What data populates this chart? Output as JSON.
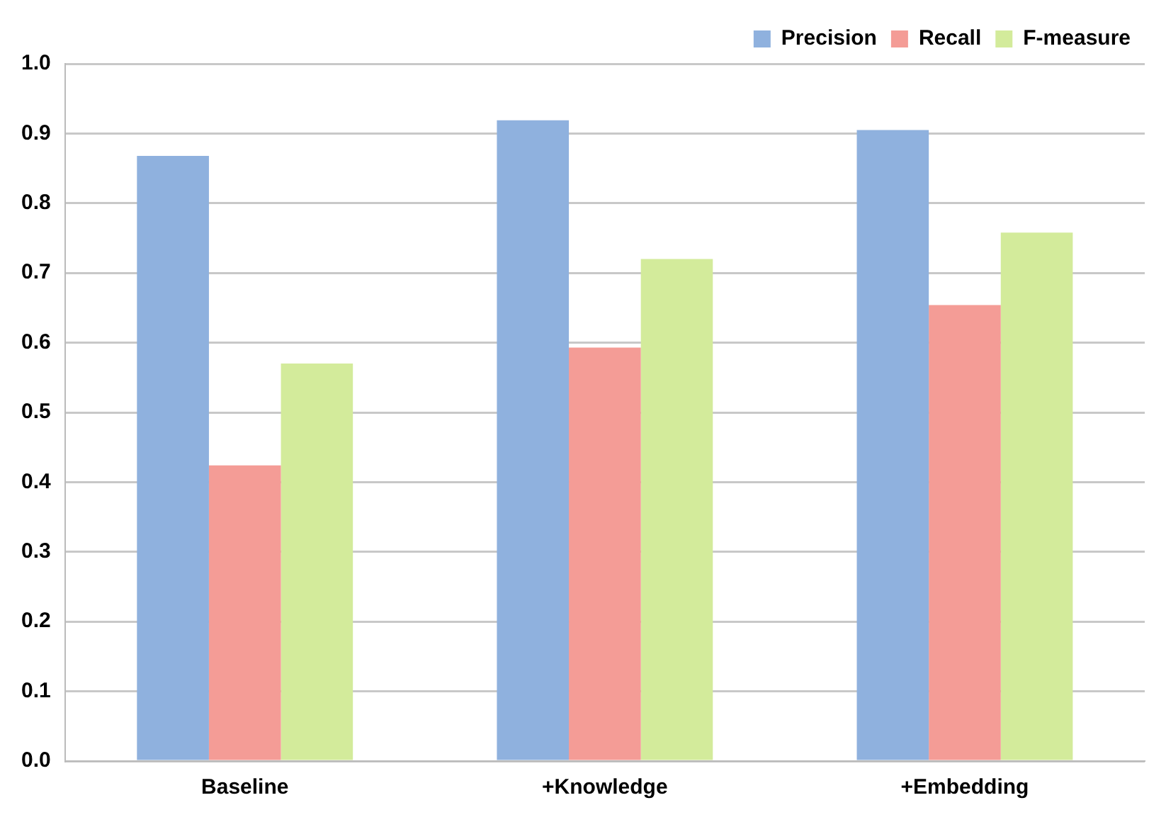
{
  "chart_data": {
    "type": "bar",
    "categories": [
      "Baseline",
      "+Knowledge",
      "+Embedding"
    ],
    "series": [
      {
        "name": "Precision",
        "color": "#8fb1de",
        "values": [
          0.868,
          0.919,
          0.905
        ]
      },
      {
        "name": "Recall",
        "color": "#f49c96",
        "values": [
          0.424,
          0.593,
          0.654
        ]
      },
      {
        "name": "F-measure",
        "color": "#d3eb9b",
        "values": [
          0.57,
          0.72,
          0.758
        ]
      }
    ],
    "ylim": [
      0,
      1
    ],
    "yticks": [
      {
        "value": 0,
        "label": "0.0"
      },
      {
        "value": 0.1,
        "label": "0.1"
      },
      {
        "value": 0.2,
        "label": "0.2"
      },
      {
        "value": 0.3,
        "label": "0.3"
      },
      {
        "value": 0.4,
        "label": "0.4"
      },
      {
        "value": 0.5,
        "label": "0.5"
      },
      {
        "value": 0.6,
        "label": "0.6"
      },
      {
        "value": 0.7,
        "label": "0.7"
      },
      {
        "value": 0.8,
        "label": "0.8"
      },
      {
        "value": 0.9,
        "label": "0.9"
      },
      {
        "value": 1,
        "label": "1.0"
      }
    ],
    "grid": "y",
    "legend": "top right"
  }
}
